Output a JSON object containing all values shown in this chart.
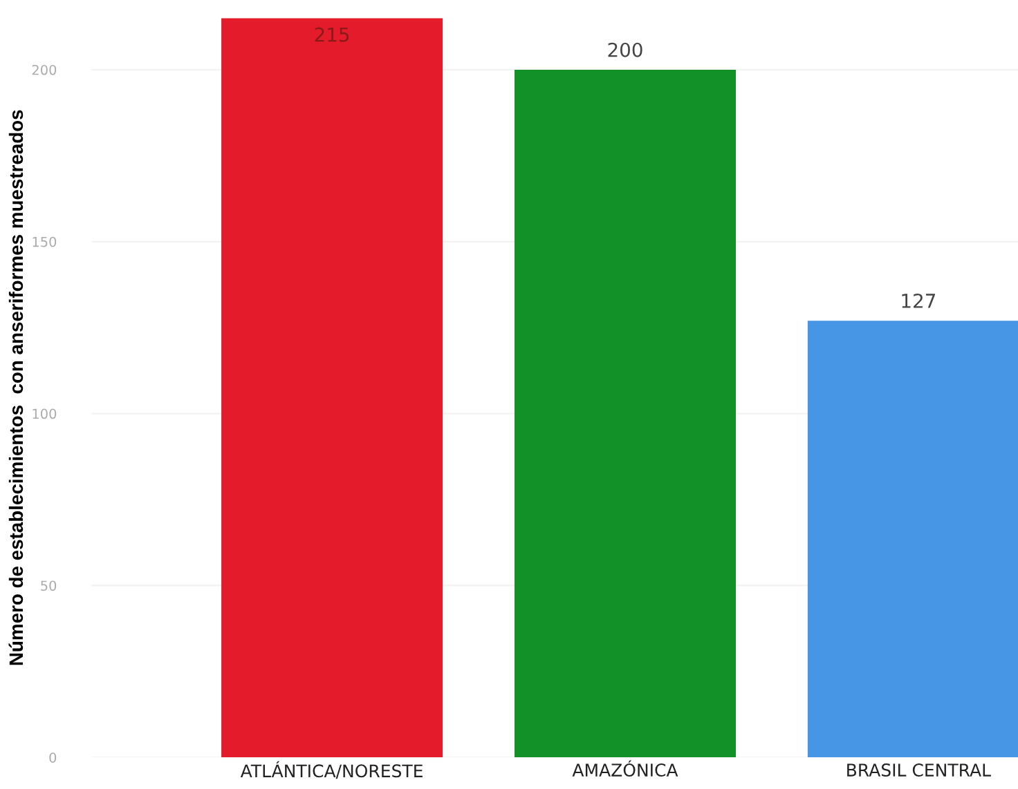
{
  "chart_data": {
    "type": "bar",
    "ylabel": "Número de establecimientos  con anseriformes muestreados",
    "categories": [
      "ATLÁNTICA/NORESTE",
      "AMAZÓNICA",
      "BRASIL CENTRAL"
    ],
    "values": [
      215,
      200,
      127
    ],
    "colors": [
      "#e31b2a",
      "#119127",
      "#4696e5"
    ],
    "ylim": [
      0,
      215
    ],
    "yticks": [
      0,
      50,
      100,
      150,
      200
    ],
    "grid": "y",
    "data_labels": true
  }
}
